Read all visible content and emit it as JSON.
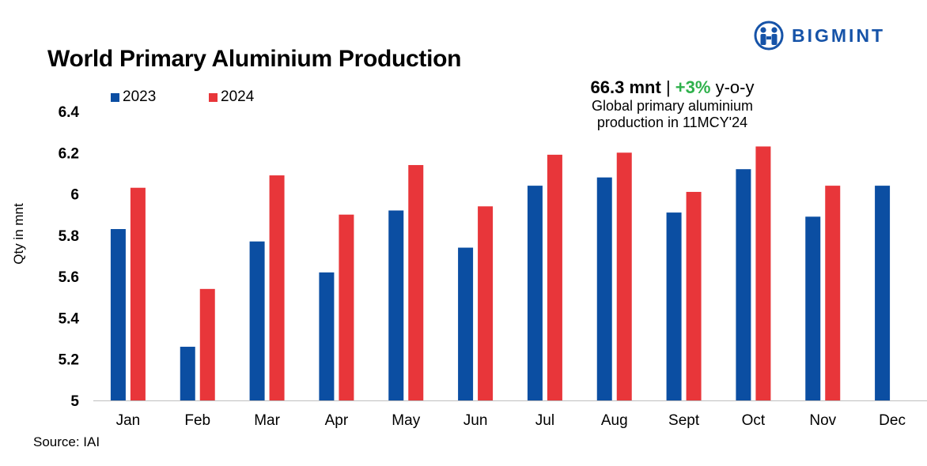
{
  "brand": {
    "name": "BIGMINT",
    "logo_icon": "people-circle-icon",
    "color": "#1653a8"
  },
  "source": "Source: IAI",
  "annotation": {
    "value": "66.3 mnt",
    "separator": "|",
    "change": "+3%",
    "change_suffix": "y-o-y",
    "line2": "Global primary aluminium",
    "line3": "production in 11MCY'24",
    "change_color": "#2fb14c"
  },
  "chart_data": {
    "type": "bar",
    "title": "World Primary Aluminium Production",
    "xlabel": "",
    "ylabel": "Qty in mnt",
    "ylim": [
      5,
      6.4
    ],
    "yticks": [
      "5",
      "5.2",
      "5.4",
      "5.6",
      "5.8",
      "6",
      "6.2",
      "6.4"
    ],
    "categories": [
      "Jan",
      "Feb",
      "Mar",
      "Apr",
      "May",
      "Jun",
      "Jul",
      "Aug",
      "Sept",
      "Oct",
      "Nov",
      "Dec"
    ],
    "series": [
      {
        "name": "2023",
        "color": "#0b4ea2",
        "values": [
          5.83,
          5.26,
          5.77,
          5.62,
          5.92,
          5.74,
          6.04,
          6.08,
          5.91,
          6.12,
          5.89,
          6.04
        ]
      },
      {
        "name": "2024",
        "color": "#e8363a",
        "values": [
          6.03,
          5.54,
          6.09,
          5.9,
          6.14,
          5.94,
          6.19,
          6.2,
          6.01,
          6.23,
          6.04,
          null
        ]
      }
    ],
    "grid": false,
    "legend_position": "top-left"
  }
}
